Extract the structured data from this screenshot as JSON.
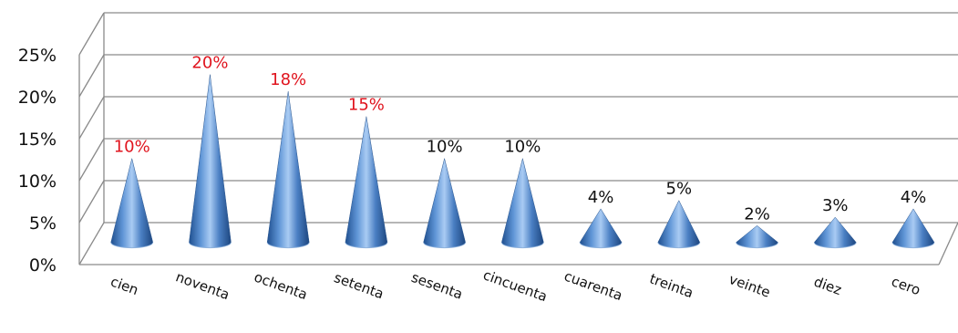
{
  "chart_data": {
    "type": "bar",
    "bar_shape": "cone-3d",
    "categories": [
      "cien",
      "noventa",
      "ochenta",
      "setenta",
      "sesenta",
      "cincuenta",
      "cuarenta",
      "treinta",
      "veinte",
      "diez",
      "cero"
    ],
    "values": [
      10,
      20,
      18,
      15,
      10,
      10,
      4,
      5,
      2,
      3,
      4
    ],
    "data_labels": [
      "10%",
      "20%",
      "18%",
      "15%",
      "10%",
      "10%",
      "4%",
      "5%",
      "2%",
      "3%",
      "4%"
    ],
    "highlighted": [
      true,
      true,
      true,
      true,
      false,
      false,
      false,
      false,
      false,
      false,
      false
    ],
    "highlight_color": "#e0141e",
    "label_color": "#111111",
    "bar_color": "#4f81bd",
    "ylim": [
      0,
      25
    ],
    "y_ticks": [
      0,
      5,
      10,
      15,
      20,
      25
    ],
    "y_tick_labels": [
      "0%",
      "5%",
      "10%",
      "15%",
      "20%",
      "25%"
    ],
    "grid": true,
    "legend": false,
    "title": "",
    "xlabel": "",
    "ylabel": ""
  }
}
